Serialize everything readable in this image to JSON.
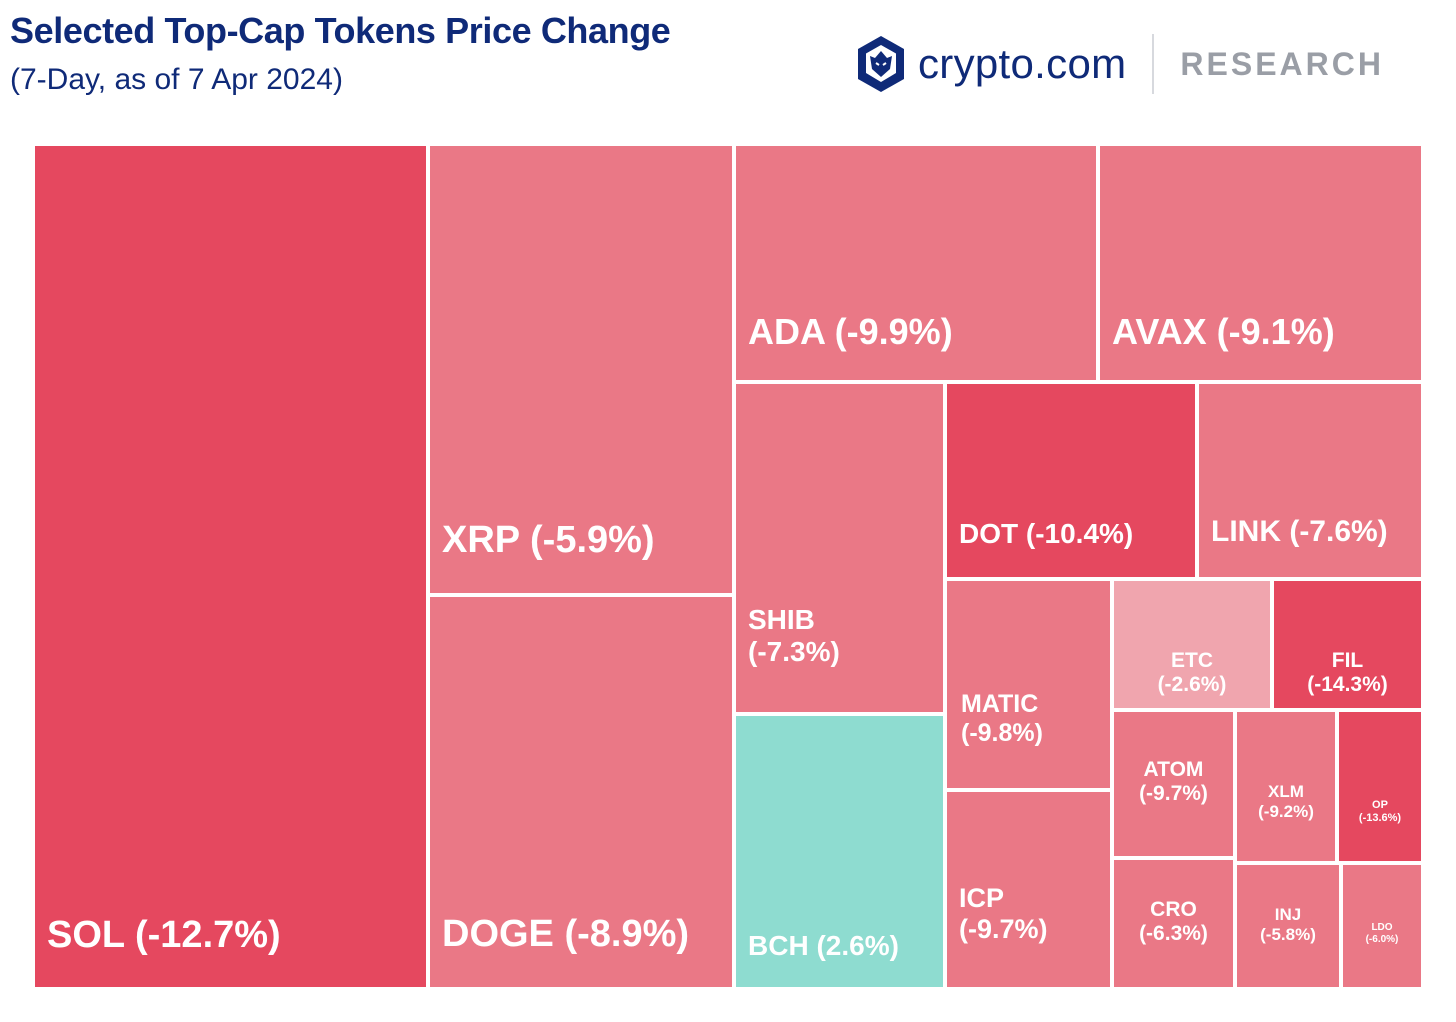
{
  "header": {
    "title": "Selected Top-Cap Tokens Price Change",
    "subtitle": "(7-Day, as of 7 Apr 2024)"
  },
  "brand": {
    "name": "crypto.com",
    "section": "RESEARCH",
    "logo_icon": "crypto-com-lion-shield-icon",
    "logo_color": "#0f2a78"
  },
  "colors": {
    "strong_negative": "#e5485f",
    "negative": "#ea7886",
    "mild_negative": "#f0a5ae",
    "positive": "#8edcd0",
    "title": "#0f2a78",
    "research_gray": "#9a9ea6"
  },
  "chart_data": {
    "type": "treemap",
    "title": "Selected Top-Cap Tokens Price Change",
    "subtitle": "(7-Day, as of 7 Apr 2024)",
    "unit": "%",
    "items": [
      {
        "name": "SOL",
        "change": -12.7,
        "label": "SOL (-12.7%)"
      },
      {
        "name": "XRP",
        "change": -5.9,
        "label": "XRP (-5.9%)"
      },
      {
        "name": "DOGE",
        "change": -8.9,
        "label": "DOGE (-8.9%)"
      },
      {
        "name": "ADA",
        "change": -9.9,
        "label": "ADA (-9.9%)"
      },
      {
        "name": "AVAX",
        "change": -9.1,
        "label": "AVAX (-9.1%)"
      },
      {
        "name": "SHIB",
        "change": -7.3,
        "label": "SHIB",
        "label2": "(-7.3%)"
      },
      {
        "name": "BCH",
        "change": 2.6,
        "label": "BCH (2.6%)"
      },
      {
        "name": "DOT",
        "change": -10.4,
        "label": "DOT (-10.4%)"
      },
      {
        "name": "LINK",
        "change": -7.6,
        "label": "LINK (-7.6%)"
      },
      {
        "name": "MATIC",
        "change": -9.8,
        "label": "MATIC",
        "label2": "(-9.8%)"
      },
      {
        "name": "ICP",
        "change": -9.7,
        "label": "ICP",
        "label2": "(-9.7%)"
      },
      {
        "name": "ETC",
        "change": -2.6,
        "label": "ETC",
        "label2": "(-2.6%)"
      },
      {
        "name": "FIL",
        "change": -14.3,
        "label": "FIL",
        "label2": "(-14.3%)"
      },
      {
        "name": "ATOM",
        "change": -9.7,
        "label": "ATOM",
        "label2": "(-9.7%)"
      },
      {
        "name": "XLM",
        "change": -9.2,
        "label": "XLM",
        "label2": "(-9.2%)"
      },
      {
        "name": "OP",
        "change": -13.6,
        "label": "OP",
        "label2": "(-13.6%)"
      },
      {
        "name": "CRO",
        "change": -6.3,
        "label": "CRO",
        "label2": "(-6.3%)"
      },
      {
        "name": "INJ",
        "change": -5.8,
        "label": "INJ",
        "label2": "(-5.8%)"
      },
      {
        "name": "LDO",
        "change": -6.0,
        "label": "LDO",
        "label2": "(-6.0%)"
      }
    ]
  }
}
